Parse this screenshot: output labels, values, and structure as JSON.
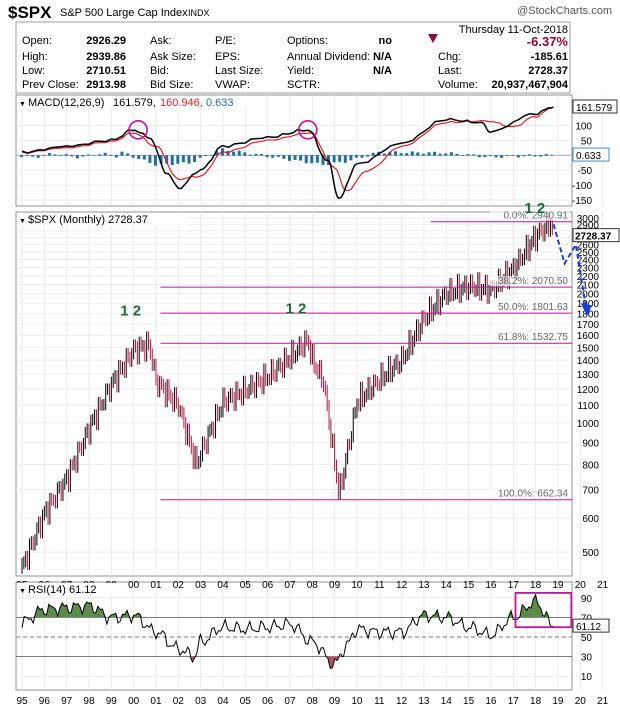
{
  "header": {
    "symbol": "$SPX",
    "name": "S&P 500 Large Cap Index",
    "exchange": "INDX",
    "watermark": "@StockCharts.com",
    "date": "Thursday  11-Oct-2018",
    "pct_change": "-6.37%",
    "row1": [
      "Open:",
      "2926.29",
      "Ask:",
      "P/E:",
      "Options:",
      "no"
    ],
    "row2": [
      "High:",
      "2939.86",
      "Ask Size:",
      "EPS:",
      "Annual Dividend:",
      "N/A",
      "Chg:",
      "-185.61"
    ],
    "row3": [
      "Low:",
      "2710.51",
      "Bid:",
      "Last Size:",
      "Yield:",
      "N/A",
      "Last:",
      "2728.37"
    ],
    "row4": [
      "Prev Close:",
      "2913.98",
      "Bid Size:",
      "VWAP:",
      "SCTR:",
      "Volume:",
      "20,937,467,904"
    ]
  },
  "colors": {
    "accent_down": "#8b0a2e",
    "macd_line": "#000000",
    "signal_line": "#d9232d",
    "histogram": "#1f6fa6",
    "fib": "#c0149c",
    "rsi_fill": "#5c8a4a",
    "rsi_low_fill": "#b0506a",
    "arrow": "#1a3fd6",
    "label_green": "#1e6b3a"
  },
  "macd": {
    "title": "MACD(12,26,9)",
    "v1": "161.579,",
    "v2": "160.946,",
    "v3": "0.633",
    "badge1": "161.579",
    "badge2": "0.633",
    "ticks": [
      "100",
      "50",
      "0",
      "-50",
      "-100",
      "-150"
    ]
  },
  "price": {
    "title": "$SPX (Monthly) 2728.37",
    "badge": "2728.37",
    "ticks": [
      "3000",
      "2900",
      "2800",
      "2700",
      "2600",
      "2500",
      "2400",
      "2300",
      "2200",
      "2100",
      "2000",
      "1900",
      "1800",
      "1700",
      "1600",
      "1500",
      "1400",
      "1300",
      "1200",
      "1100",
      "1000",
      "900",
      "800",
      "700",
      "600",
      "500"
    ],
    "fib": [
      "0.0%: 2940.91",
      "38.2%: 2070.50",
      "50.0%: 1801.63",
      "61.8%: 1532.75",
      "100.0%: 662.34"
    ],
    "labels_12": [
      "1 2",
      "1 2",
      "1 2"
    ]
  },
  "rsi": {
    "title": "RSI(14) 61.12",
    "badge": "61.12",
    "ticks": [
      "90",
      "70",
      "50",
      "30",
      "10"
    ]
  },
  "xaxis": [
    "95",
    "96",
    "97",
    "98",
    "99",
    "00",
    "01",
    "02",
    "03",
    "04",
    "05",
    "06",
    "07",
    "08",
    "09",
    "10",
    "11",
    "12",
    "13",
    "14",
    "15",
    "16",
    "17",
    "18",
    "19",
    "20",
    "21"
  ],
  "chart_data": [
    {
      "type": "line",
      "title": "MACD(12,26,9)",
      "series": [
        {
          "name": "MACD",
          "x": [
            1995,
            1997,
            1999,
            2000,
            2000.7,
            2001.5,
            2002,
            2003,
            2004,
            2006,
            2007.8,
            2008.7,
            2009.2,
            2010,
            2012,
            2014,
            2015.5,
            2016,
            2018,
            2018.8
          ],
          "values": [
            10,
            30,
            50,
            85,
            60,
            -60,
            -110,
            -50,
            30,
            60,
            85,
            -20,
            -145,
            -30,
            40,
            120,
            110,
            80,
            140,
            161.6
          ]
        },
        {
          "name": "Signal",
          "x": [
            1995,
            1997,
            1999,
            2000,
            2001,
            2002,
            2003,
            2004,
            2006,
            2007.9,
            2009,
            2009.5,
            2010.5,
            2012,
            2014,
            2015.8,
            2017,
            2018,
            2018.8
          ],
          "values": [
            8,
            25,
            45,
            75,
            30,
            -80,
            -70,
            10,
            50,
            75,
            -40,
            -120,
            -50,
            30,
            110,
            115,
            95,
            130,
            160.9
          ]
        },
        {
          "name": "Histogram",
          "x": [
            1999.5,
            2001,
            2002.5,
            2004,
            2008.5,
            2009.5,
            2011,
            2014,
            2016,
            2018.5
          ],
          "values": [
            10,
            -30,
            -25,
            20,
            -30,
            -20,
            10,
            8,
            -5,
            0.6
          ]
        }
      ],
      "ylim": [
        -150,
        175
      ]
    },
    {
      "type": "line",
      "title": "$SPX (Monthly) 2728.37",
      "x": [
        1995,
        1996,
        1997,
        1998,
        1999,
        2000,
        2000.7,
        2001,
        2002,
        2002.8,
        2003,
        2004,
        2005,
        2006,
        2007,
        2007.8,
        2008,
        2008.5,
        2009.2,
        2010,
        2011,
        2012,
        2013,
        2014,
        2015,
        2016,
        2017,
        2018,
        2018.7,
        2018.8
      ],
      "values": [
        459,
        615,
        740,
        970,
        1230,
        1480,
        1520,
        1250,
        1100,
        800,
        850,
        1120,
        1190,
        1280,
        1420,
        1560,
        1400,
        1250,
        680,
        1120,
        1260,
        1400,
        1750,
        2000,
        2080,
        2040,
        2280,
        2720,
        2930,
        2728.37
      ],
      "fib_levels": [
        2940.91,
        2070.5,
        1801.63,
        1532.75,
        662.34
      ],
      "scale": "log",
      "ylim": [
        440,
        3000
      ]
    },
    {
      "type": "line",
      "title": "RSI(14) 61.12",
      "x": [
        1995,
        1996,
        1997,
        1998,
        1999,
        2000,
        2001,
        2002,
        2002.7,
        2003,
        2004,
        2005,
        2006,
        2007,
        2008,
        2009,
        2009.5,
        2010,
        2011,
        2012,
        2013,
        2014,
        2015,
        2016,
        2017,
        2018,
        2018.8
      ],
      "values": [
        65,
        78,
        80,
        82,
        70,
        72,
        55,
        38,
        30,
        45,
        60,
        58,
        60,
        63,
        45,
        22,
        40,
        58,
        55,
        55,
        72,
        70,
        60,
        52,
        70,
        86,
        61.12
      ],
      "ylim": [
        0,
        100
      ]
    }
  ]
}
